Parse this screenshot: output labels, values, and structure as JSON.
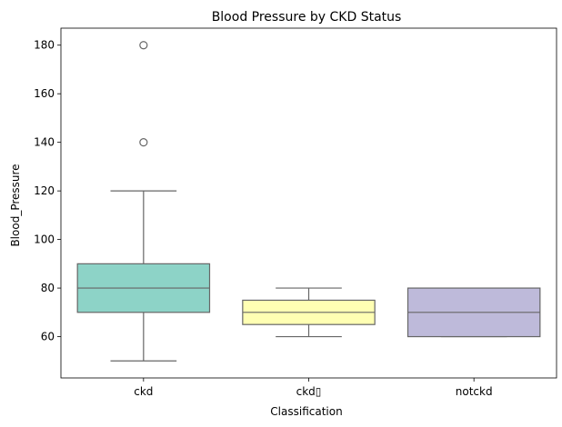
{
  "chart_data": {
    "type": "box",
    "title": "Blood Pressure by CKD Status",
    "xlabel": "Classification",
    "ylabel": "Blood_Pressure",
    "ylim": [
      43,
      187
    ],
    "yticks": [
      60,
      80,
      100,
      120,
      140,
      160,
      180
    ],
    "grid": false,
    "categories": [
      "ckd",
      "ckd\t",
      "notckd"
    ],
    "category_tick_labels": [
      "ckd",
      "ckd▯",
      "notckd"
    ],
    "boxes": [
      {
        "category": "ckd",
        "min": 50,
        "q1": 70,
        "median": 80,
        "q3": 90,
        "max": 120,
        "outliers": [
          140,
          180
        ],
        "color": "#8dd3c7"
      },
      {
        "category": "ckd\t",
        "min": 60,
        "q1": 65,
        "median": 70,
        "q3": 75,
        "max": 80,
        "outliers": [],
        "color": "#ffffb3"
      },
      {
        "category": "notckd",
        "min": 60,
        "q1": 60,
        "median": 70,
        "q3": 80,
        "max": 80,
        "outliers": [],
        "color": "#bebada"
      }
    ],
    "line_color": "#666666"
  }
}
